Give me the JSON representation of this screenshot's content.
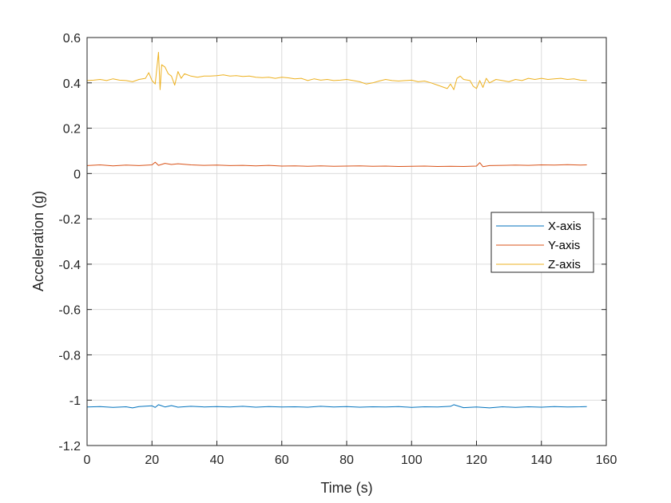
{
  "chart_data": {
    "type": "line",
    "title": "",
    "xlabel": "Time (s)",
    "ylabel": "Acceleration (g)",
    "xlim": [
      0,
      160
    ],
    "ylim": [
      -1.2,
      0.6
    ],
    "xticks": [
      0,
      20,
      40,
      60,
      80,
      100,
      120,
      140,
      160
    ],
    "yticks": [
      -1.2,
      -1,
      -0.8,
      -0.6,
      -0.4,
      -0.2,
      0,
      0.2,
      0.4,
      0.6
    ],
    "ytick_labels": [
      "-1.2",
      "-1",
      "-0.8",
      "-0.6",
      "-0.4",
      "-0.2",
      "0",
      "0.2",
      "0.4",
      "0.6"
    ],
    "grid": true,
    "legend_position": "right",
    "series": [
      {
        "name": "X-axis",
        "color": "#0072BD",
        "x": [
          0,
          4,
          8,
          12,
          14,
          16,
          20,
          21,
          22,
          24,
          26,
          28,
          32,
          36,
          40,
          44,
          48,
          52,
          56,
          60,
          64,
          68,
          72,
          76,
          80,
          84,
          88,
          92,
          96,
          100,
          104,
          108,
          112,
          113,
          116,
          120,
          124,
          128,
          132,
          136,
          140,
          144,
          148,
          152,
          154
        ],
        "y": [
          -1.03,
          -1.028,
          -1.032,
          -1.029,
          -1.034,
          -1.028,
          -1.025,
          -1.032,
          -1.02,
          -1.03,
          -1.024,
          -1.031,
          -1.027,
          -1.03,
          -1.028,
          -1.03,
          -1.027,
          -1.031,
          -1.028,
          -1.03,
          -1.029,
          -1.031,
          -1.027,
          -1.03,
          -1.028,
          -1.031,
          -1.029,
          -1.03,
          -1.028,
          -1.032,
          -1.029,
          -1.03,
          -1.027,
          -1.02,
          -1.033,
          -1.03,
          -1.034,
          -1.029,
          -1.032,
          -1.029,
          -1.031,
          -1.028,
          -1.03,
          -1.029,
          -1.028
        ]
      },
      {
        "name": "Y-axis",
        "color": "#D95319",
        "x": [
          0,
          4,
          8,
          12,
          16,
          20,
          21,
          22,
          24,
          26,
          28,
          32,
          36,
          40,
          44,
          48,
          52,
          56,
          60,
          64,
          68,
          72,
          76,
          80,
          84,
          88,
          92,
          96,
          100,
          104,
          108,
          112,
          116,
          120,
          121,
          122,
          124,
          128,
          132,
          136,
          140,
          144,
          148,
          152,
          154
        ],
        "y": [
          0.035,
          0.038,
          0.034,
          0.037,
          0.035,
          0.038,
          0.05,
          0.036,
          0.045,
          0.04,
          0.043,
          0.038,
          0.036,
          0.037,
          0.035,
          0.036,
          0.034,
          0.036,
          0.033,
          0.034,
          0.032,
          0.034,
          0.032,
          0.033,
          0.034,
          0.032,
          0.033,
          0.031,
          0.032,
          0.033,
          0.031,
          0.032,
          0.031,
          0.033,
          0.048,
          0.03,
          0.035,
          0.036,
          0.037,
          0.036,
          0.038,
          0.037,
          0.039,
          0.037,
          0.038
        ]
      },
      {
        "name": "Z-axis",
        "color": "#EDB120",
        "x": [
          0,
          2,
          4,
          6,
          8,
          10,
          12,
          14,
          16,
          18,
          19,
          20,
          21,
          22,
          22.5,
          23,
          24,
          25,
          26,
          27,
          28,
          29,
          30,
          32,
          34,
          36,
          38,
          40,
          42,
          44,
          46,
          48,
          50,
          52,
          54,
          56,
          58,
          60,
          62,
          64,
          66,
          68,
          70,
          72,
          74,
          76,
          78,
          80,
          82,
          84,
          86,
          88,
          90,
          92,
          94,
          96,
          98,
          100,
          102,
          104,
          106,
          108,
          110,
          111,
          112,
          113,
          114,
          115,
          116,
          118,
          119,
          120,
          121,
          122,
          123,
          124,
          126,
          128,
          130,
          132,
          134,
          136,
          138,
          140,
          142,
          144,
          146,
          148,
          150,
          152,
          154
        ],
        "y": [
          0.41,
          0.412,
          0.415,
          0.41,
          0.418,
          0.412,
          0.41,
          0.405,
          0.415,
          0.42,
          0.445,
          0.41,
          0.395,
          0.535,
          0.37,
          0.48,
          0.47,
          0.44,
          0.43,
          0.39,
          0.45,
          0.42,
          0.44,
          0.43,
          0.425,
          0.43,
          0.43,
          0.432,
          0.435,
          0.43,
          0.432,
          0.428,
          0.43,
          0.425,
          0.423,
          0.425,
          0.42,
          0.425,
          0.422,
          0.418,
          0.42,
          0.41,
          0.418,
          0.412,
          0.415,
          0.41,
          0.412,
          0.415,
          0.41,
          0.405,
          0.395,
          0.4,
          0.408,
          0.415,
          0.41,
          0.408,
          0.41,
          0.412,
          0.405,
          0.408,
          0.4,
          0.39,
          0.38,
          0.375,
          0.395,
          0.37,
          0.42,
          0.43,
          0.415,
          0.41,
          0.385,
          0.375,
          0.41,
          0.38,
          0.42,
          0.4,
          0.415,
          0.41,
          0.405,
          0.415,
          0.41,
          0.42,
          0.415,
          0.42,
          0.415,
          0.418,
          0.42,
          0.415,
          0.418,
          0.412,
          0.41
        ]
      }
    ]
  }
}
